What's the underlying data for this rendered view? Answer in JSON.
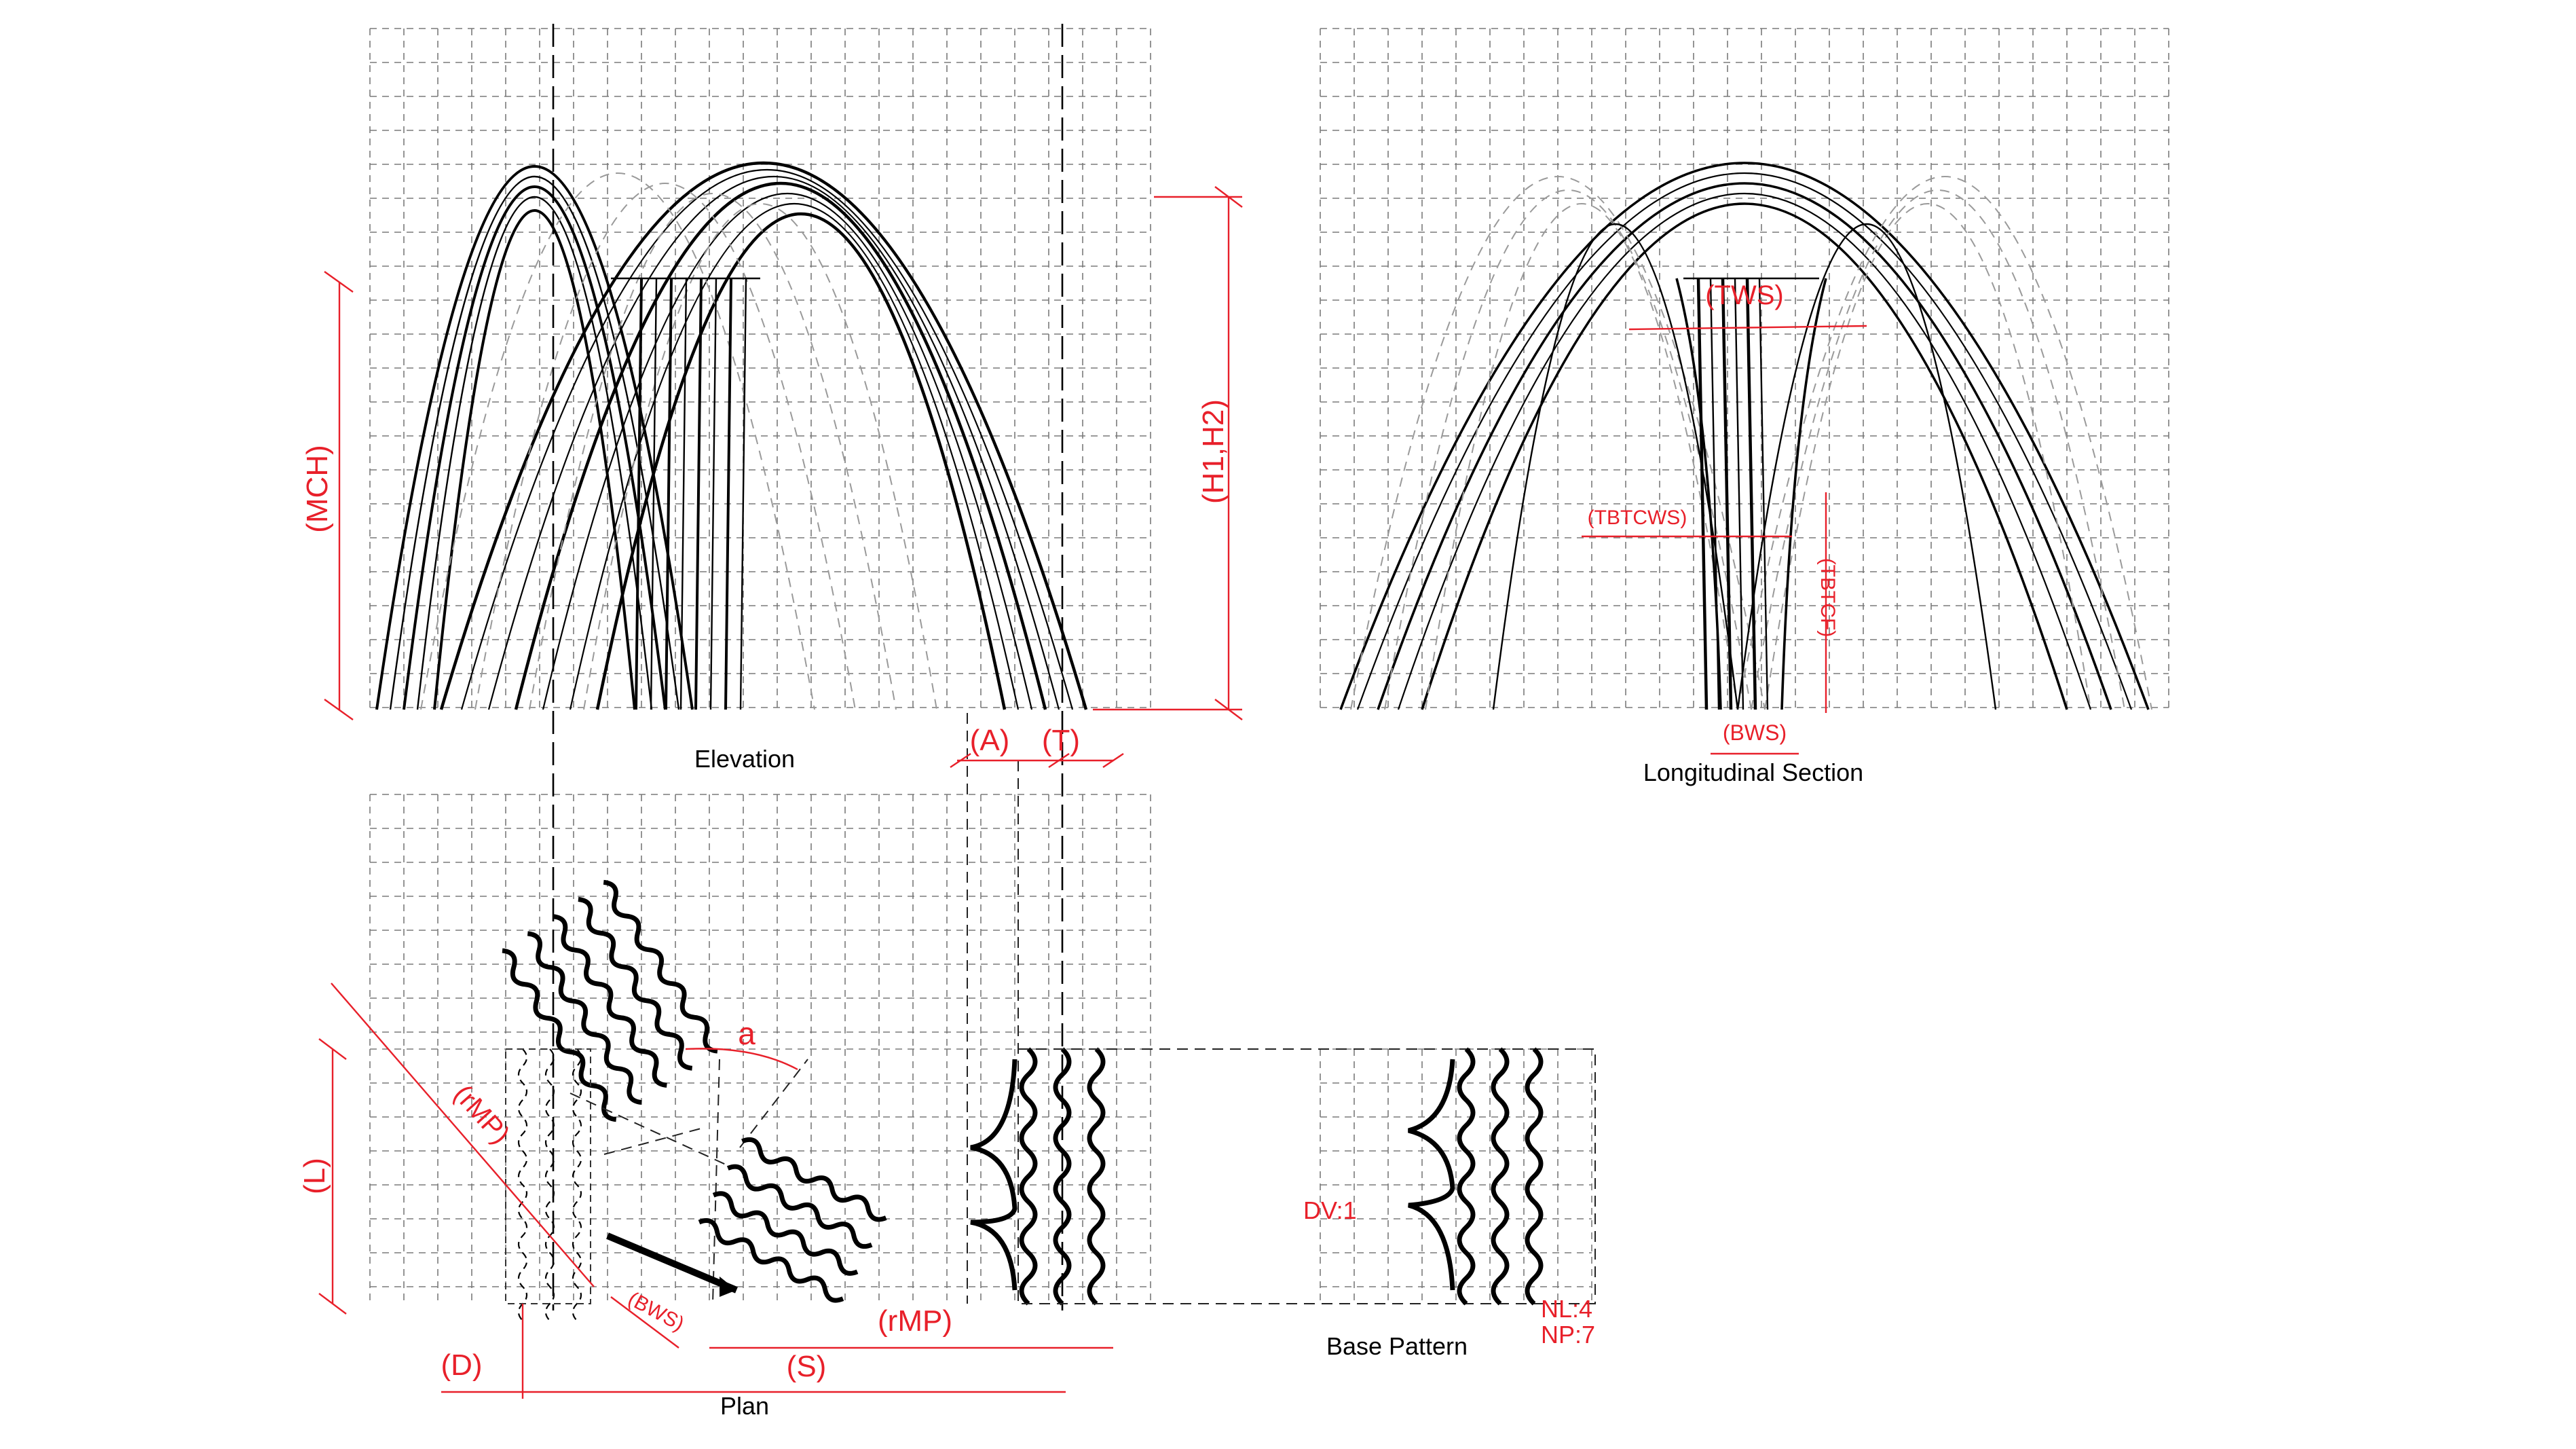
{
  "views": {
    "elevation": "Elevation",
    "longitudinal_section": "Longitudinal Section",
    "plan": "Plan",
    "base_pattern": "Base Pattern"
  },
  "dimensions": {
    "mch": "(MCH)",
    "h1h2": "(H1,H2)",
    "tws": "(TWS)",
    "tbtcws": "(TBTCWS)",
    "tbtcf": "(TBTCF)",
    "bws_section": "(BWS)",
    "a": "(A)",
    "t": "(T)",
    "l": "(L)",
    "rmp_diag": "(rMP)",
    "angle": "a",
    "bws_plan": "(BWS)",
    "rmp_plan": "(rMP)",
    "d": "(D)",
    "s": "(S)"
  },
  "parameters": {
    "dv": "DV:1",
    "nl": "NL:4",
    "np": "NP:7"
  },
  "colors": {
    "annotation": "#e8202a",
    "linework": "#000000",
    "grid": "#7a7a7a"
  }
}
